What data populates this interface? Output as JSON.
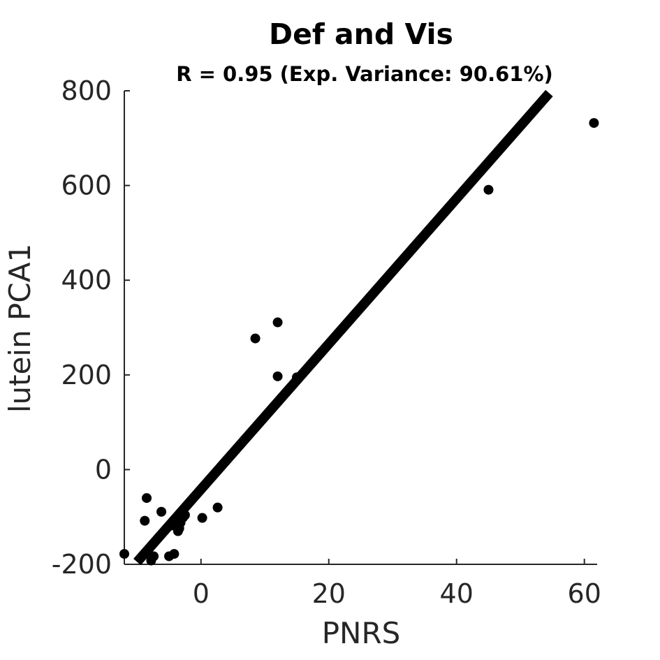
{
  "chart_data": {
    "type": "scatter",
    "title": "Def and Vis",
    "subtitle": "R = 0.95 (Exp. Variance: 90.61%)",
    "xlabel": "PNRS",
    "ylabel": "lutein PCA1",
    "xlim": [
      -12,
      62
    ],
    "ylim": [
      -200,
      800
    ],
    "xticks": [
      0,
      20,
      40,
      60
    ],
    "yticks": [
      -200,
      0,
      200,
      400,
      600,
      800
    ],
    "grid": false,
    "series": [
      {
        "values": [
          {
            "x": -12,
            "y": -178
          },
          {
            "x": -8.5,
            "y": -60
          },
          {
            "x": -8.8,
            "y": -108
          },
          {
            "x": -6.2,
            "y": -89
          },
          {
            "x": -7.8,
            "y": -192
          },
          {
            "x": -7.4,
            "y": -183
          },
          {
            "x": -5,
            "y": -183
          },
          {
            "x": -4.2,
            "y": -178
          },
          {
            "x": -4.6,
            "y": -118
          },
          {
            "x": -3.6,
            "y": -130
          },
          {
            "x": -3.4,
            "y": -124
          },
          {
            "x": -3.2,
            "y": -112
          },
          {
            "x": -2.8,
            "y": -101
          },
          {
            "x": -2.5,
            "y": -96
          },
          {
            "x": 0.2,
            "y": -102
          },
          {
            "x": 2.6,
            "y": -80
          },
          {
            "x": 8.5,
            "y": 277
          },
          {
            "x": 12,
            "y": 311
          },
          {
            "x": 12,
            "y": 197
          },
          {
            "x": 15,
            "y": 195
          },
          {
            "x": 45,
            "y": 591
          },
          {
            "x": 61.5,
            "y": 732
          }
        ]
      }
    ],
    "fit_line": {
      "x": [
        -10,
        54.5
      ],
      "y": [
        -195,
        795
      ]
    },
    "colors": {
      "points": "#000000",
      "fit_line": "#000000",
      "axes": "#262626"
    }
  }
}
